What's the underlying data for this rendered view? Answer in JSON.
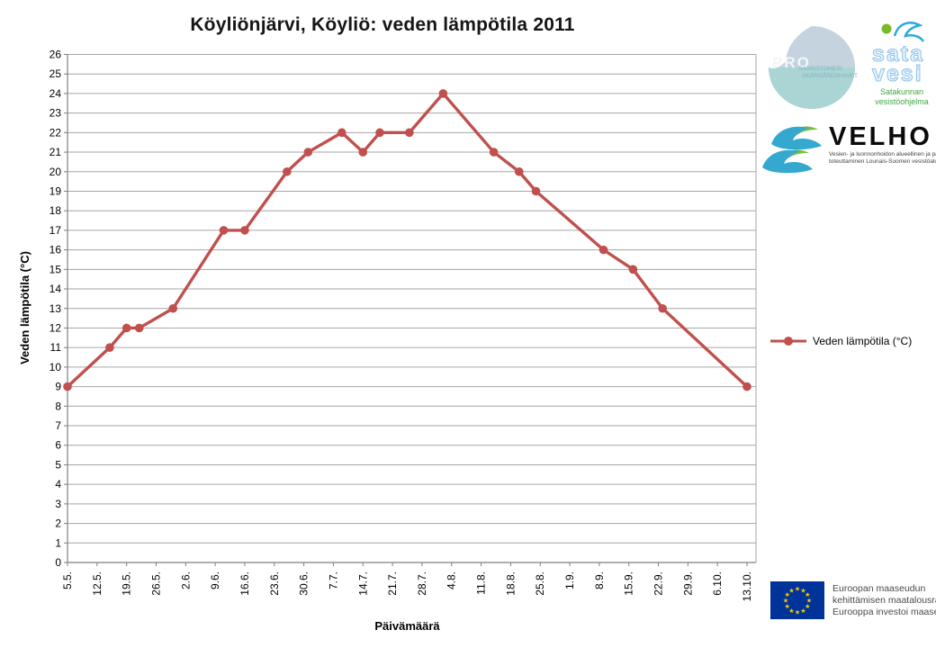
{
  "title": "Köyliönjärvi, Köyliö: veden lämpötila 2011",
  "chart_data": {
    "type": "line",
    "title": "Köyliönjärvi, Köyliö: veden lämpötila 2011",
    "xlabel": "Päivämäärä",
    "ylabel": "Veden lämpötila (°C)",
    "ylim": [
      0,
      26
    ],
    "ytick_step": 1,
    "grid": true,
    "legend_position": "right",
    "x_axis_note": "date axis 5.5.2011 - 13.10.2011, tick every 7 days; day = offset from 5.5.",
    "x_tick_interval_days": 7,
    "x_tick_labels": [
      "5.5.",
      "12.5.",
      "19.5.",
      "26.5.",
      "2.6.",
      "9.6.",
      "16.6.",
      "23.6.",
      "30.6.",
      "7.7.",
      "14.7.",
      "21.7.",
      "28.7.",
      "4.8.",
      "11.8.",
      "18.8.",
      "25.8.",
      "1.9.",
      "8.9.",
      "15.9.",
      "22.9.",
      "29.9.",
      "6.10.",
      "13.10."
    ],
    "series": [
      {
        "name": "Veden lämpötila (°C)",
        "color": "#C0504D",
        "marker": "circle",
        "points": [
          {
            "day": 0,
            "temp": 9
          },
          {
            "day": 10,
            "temp": 11
          },
          {
            "day": 14,
            "temp": 12
          },
          {
            "day": 17,
            "temp": 12
          },
          {
            "day": 25,
            "temp": 13
          },
          {
            "day": 37,
            "temp": 17
          },
          {
            "day": 42,
            "temp": 17
          },
          {
            "day": 52,
            "temp": 20
          },
          {
            "day": 57,
            "temp": 21
          },
          {
            "day": 65,
            "temp": 22
          },
          {
            "day": 70,
            "temp": 21
          },
          {
            "day": 74,
            "temp": 22
          },
          {
            "day": 81,
            "temp": 22
          },
          {
            "day": 89,
            "temp": 24
          },
          {
            "day": 101,
            "temp": 21
          },
          {
            "day": 107,
            "temp": 20
          },
          {
            "day": 111,
            "temp": 19
          },
          {
            "day": 127,
            "temp": 16
          },
          {
            "day": 134,
            "temp": 15
          },
          {
            "day": 141,
            "temp": 13
          },
          {
            "day": 161,
            "temp": 9
          }
        ]
      }
    ]
  },
  "axis": {
    "y_title": "Veden lämpötila (°C)",
    "x_title": "Päivämäärä"
  },
  "legend": {
    "label": "Veden lämpötila (°C)"
  },
  "logos": {
    "pro_saaristomeri": {
      "name": "PRO",
      "line1": "SAARISTOMERI",
      "line2": "SKÄRGÅRDSHAVET"
    },
    "satavesi": {
      "word1": "sata",
      "word2": "vesi",
      "sub1": "Satakunnan",
      "sub2": "vesistöohjelma"
    },
    "velho": {
      "name": "VELHO",
      "tagline1": "Vesien- ja luonnonhoidon alueellinen ja paikallinen",
      "tagline2": "toteuttaminen Lounais-Suomen vesistöalueilla"
    },
    "eu": {
      "line1": "Euroopan maaseudun",
      "line2": "kehittämisen maatalousrahasto:",
      "line3": "Eurooppa investoi maaseutualueisiin"
    }
  },
  "colors": {
    "series_red": "#C0504D",
    "gridline": "#A6A6A6",
    "axis": "#7F7F7F",
    "eu_flag": "#003399",
    "eu_stars": "#FFCC00",
    "satavesi_blue": "#2AA9E0",
    "satavesi_green": "#43A643",
    "velho_blue": "#35A8D0",
    "velho_green": "#7CBF3F"
  }
}
